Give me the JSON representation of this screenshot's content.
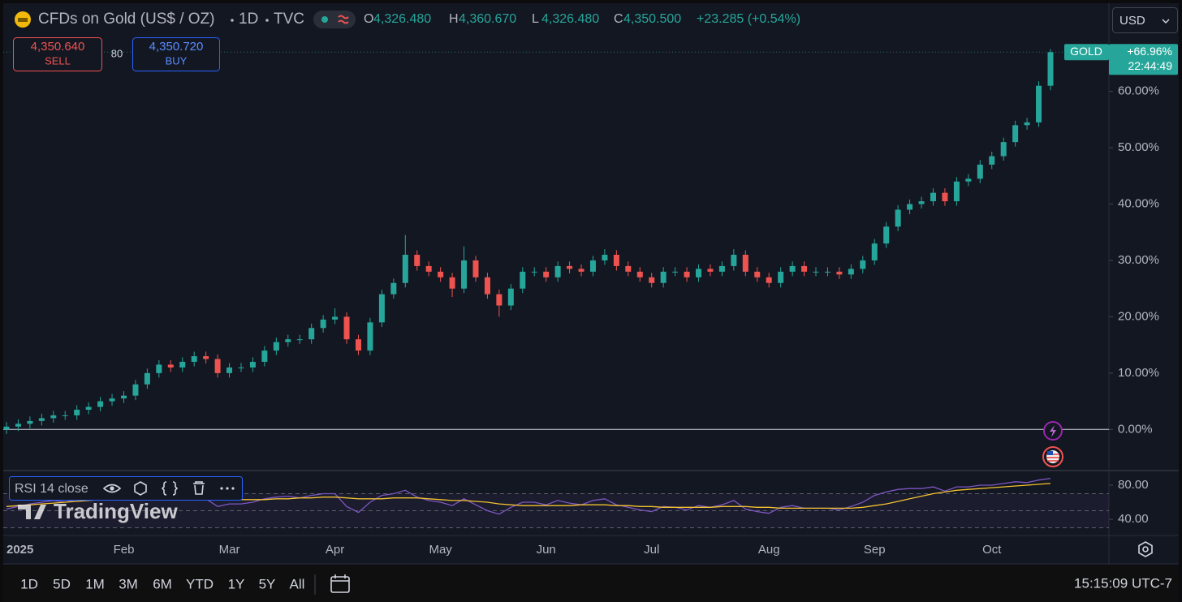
{
  "header": {
    "name": "CFDs on Gold (US$ / OZ)",
    "interval": "1D",
    "source": "TVC",
    "open_label": "O",
    "open": "4,326.480",
    "high_label": "H",
    "high": "4,360.670",
    "low_label": "L",
    "low": "4,326.480",
    "close_label": "C",
    "close": "4,350.500",
    "change": "+23.285 (+0.54%)"
  },
  "trade": {
    "sell_price": "4,350.640",
    "sell": "SELL",
    "spread": "80",
    "buy_price": "4,350.720",
    "buy": "BUY"
  },
  "currency": "USD",
  "watermark": "TradingView",
  "timeframes": [
    "1D",
    "5D",
    "1M",
    "3M",
    "6M",
    "YTD",
    "1Y",
    "5Y",
    "All"
  ],
  "clock": "15:15:09 UTC-7",
  "chart_data": [
    {
      "type": "candlestick",
      "symbol": "GOLD",
      "last_close_label": "+66.96%",
      "countdown": "22:44:49",
      "up_color": "#26a69a",
      "down_color": "#ef5350",
      "categories": [
        "2025",
        null,
        null,
        null,
        null,
        null,
        null,
        null,
        null,
        null,
        "Feb",
        null,
        null,
        null,
        null,
        null,
        null,
        null,
        null,
        "Mar",
        null,
        null,
        null,
        null,
        null,
        null,
        null,
        null,
        "Apr",
        null,
        null,
        null,
        null,
        null,
        null,
        null,
        null,
        "May",
        null,
        null,
        null,
        null,
        null,
        null,
        null,
        null,
        "Jun",
        null,
        null,
        null,
        null,
        null,
        null,
        null,
        null,
        "Jul",
        null,
        null,
        null,
        null,
        null,
        null,
        null,
        null,
        null,
        "Aug",
        null,
        null,
        null,
        null,
        null,
        null,
        null,
        null,
        "Sep",
        null,
        null,
        null,
        null,
        null,
        null,
        null,
        null,
        null,
        "Oct",
        null,
        null,
        null,
        null,
        null
      ],
      "open": [
        0,
        0.5,
        1,
        1.5,
        2,
        2.5,
        2.5,
        3.5,
        4,
        5,
        5.5,
        6,
        8,
        10,
        11.5,
        11,
        12,
        13,
        12.5,
        10,
        11,
        11,
        12,
        14,
        15.5,
        16,
        16,
        18,
        19.5,
        20,
        16,
        14,
        19,
        24,
        26,
        31,
        29,
        28,
        27,
        25,
        30,
        27,
        24,
        22,
        25,
        28,
        28,
        27,
        29,
        28.5,
        28,
        30,
        31,
        29,
        28,
        27,
        26,
        28,
        28,
        27,
        28.5,
        28,
        29,
        31,
        28,
        27,
        26,
        28,
        29,
        28,
        28,
        28,
        27.5,
        28.5,
        30,
        33,
        36,
        39,
        40,
        40.5,
        42,
        40.5,
        44,
        44.5,
        47,
        48.5,
        51,
        54,
        54.5,
        61
      ],
      "high": [
        1.3,
        1.8,
        2.3,
        2.8,
        3.3,
        3.3,
        4.3,
        4.8,
        5.8,
        6.3,
        6.8,
        8.8,
        10.8,
        12.3,
        12.3,
        12.8,
        13.8,
        13.8,
        13.3,
        11.8,
        11.8,
        12.8,
        14.8,
        16.3,
        16.8,
        16.8,
        18.8,
        20.3,
        21.5,
        20.8,
        16.8,
        19.8,
        24.8,
        26.8,
        34.5,
        31.8,
        29.8,
        28.8,
        27.8,
        32.5,
        30.8,
        27.8,
        24.8,
        25.8,
        28.8,
        28.8,
        28.8,
        29.8,
        29.8,
        29.3,
        30.8,
        32,
        31.8,
        29.8,
        28.8,
        27.8,
        28.8,
        28.8,
        28.8,
        29.3,
        29.3,
        29.8,
        32,
        31.8,
        28.8,
        27.8,
        28.8,
        29.8,
        29.8,
        28.8,
        28.8,
        28.8,
        29.3,
        30.8,
        33.8,
        36.8,
        39.8,
        40.8,
        41.3,
        42.8,
        42.8,
        44.8,
        45.3,
        47.8,
        49.3,
        51.8,
        54.8,
        55.3,
        61.8,
        67.5
      ],
      "low": [
        -0.8,
        -0.3,
        0.2,
        0.7,
        1.2,
        1.7,
        1.7,
        2.7,
        3.2,
        4.2,
        4.7,
        5.2,
        7.2,
        9.2,
        10.2,
        10.2,
        11.2,
        11.7,
        9.2,
        9.2,
        10.2,
        10.2,
        11.2,
        13.2,
        14.7,
        15.2,
        15.2,
        17.2,
        18.7,
        15.2,
        13.2,
        13.2,
        18.2,
        23.2,
        25.2,
        28.2,
        27.2,
        26.2,
        23.5,
        24.2,
        26.2,
        23.2,
        20,
        21.2,
        24.2,
        27.2,
        26.2,
        26.2,
        27.7,
        27.2,
        27.2,
        29.2,
        28.2,
        27.2,
        26.2,
        25.2,
        25.2,
        27.2,
        26.2,
        26.2,
        27.2,
        27.2,
        28.2,
        27.2,
        26.2,
        25.2,
        25.2,
        27.2,
        27.2,
        27.2,
        27.2,
        26.7,
        26.7,
        27.7,
        29.2,
        32.2,
        35.2,
        38.2,
        39.2,
        39.7,
        39.7,
        39.7,
        43.2,
        43.7,
        46.2,
        47.7,
        50.2,
        53.2,
        53.7,
        60.2
      ],
      "close": [
        0.5,
        1,
        1.5,
        2,
        2.5,
        2.5,
        3.5,
        4,
        5,
        5.5,
        6,
        8,
        10,
        11.5,
        11,
        12,
        13,
        12.5,
        10,
        11,
        11,
        12,
        14,
        15.5,
        16,
        16,
        18,
        19.5,
        20,
        16,
        14,
        19,
        24,
        26,
        31,
        29,
        28,
        27,
        25,
        30,
        27,
        24,
        22,
        25,
        28,
        28,
        27,
        29,
        28.5,
        28,
        30,
        31,
        29,
        28,
        27,
        26,
        28,
        28,
        27,
        28.5,
        28,
        29,
        31,
        28,
        27,
        26,
        28,
        29,
        28,
        28,
        28,
        27.5,
        28.5,
        30,
        33,
        36,
        39,
        40,
        40.5,
        42,
        40.5,
        44,
        44.5,
        47,
        48.5,
        51,
        54,
        54.5,
        61,
        66.96
      ],
      "ylim": [
        -7.3,
        75.5
      ],
      "yticks": [
        {
          "value": 0,
          "label": "0.00%"
        },
        {
          "value": 10,
          "label": "10.00%"
        },
        {
          "value": 20,
          "label": "20.00%"
        },
        {
          "value": 30,
          "label": "30.00%"
        },
        {
          "value": 40,
          "label": "40.00%"
        },
        {
          "value": 50,
          "label": "50.00%"
        },
        {
          "value": 60,
          "label": "60.00%"
        }
      ]
    },
    {
      "type": "line",
      "title": "RSI 14 close",
      "series": [
        {
          "color": "#7e57c2",
          "values": [
            52,
            55,
            58,
            60,
            62,
            60,
            63,
            64,
            66,
            65,
            66,
            68,
            70,
            71,
            66,
            67,
            68,
            64,
            55,
            58,
            58,
            60,
            64,
            66,
            67,
            65,
            68,
            70,
            70,
            55,
            48,
            60,
            68,
            70,
            74,
            66,
            62,
            60,
            56,
            64,
            57,
            50,
            46,
            54,
            60,
            60,
            57,
            62,
            59,
            57,
            62,
            64,
            57,
            54,
            51,
            49,
            55,
            54,
            51,
            56,
            54,
            57,
            62,
            52,
            49,
            47,
            54,
            56,
            53,
            53,
            53,
            51,
            55,
            60,
            68,
            72,
            75,
            76,
            76,
            78,
            73,
            78,
            78,
            80,
            80,
            82,
            84,
            83,
            86,
            88
          ]
        },
        {
          "color": "#f2c230",
          "values": [
            55,
            56,
            57,
            58,
            59,
            60,
            61,
            62,
            63,
            63,
            64,
            65,
            66,
            67,
            67,
            67,
            67,
            66,
            65,
            64,
            63,
            63,
            63,
            64,
            64,
            65,
            65,
            66,
            66,
            65,
            64,
            64,
            64,
            65,
            65,
            65,
            64,
            63,
            62,
            62,
            61,
            60,
            58,
            57,
            56,
            56,
            56,
            56,
            56,
            57,
            57,
            57,
            56,
            56,
            55,
            55,
            54,
            54,
            54,
            54,
            54,
            55,
            55,
            55,
            54,
            54,
            53,
            53,
            53,
            53,
            53,
            53,
            53,
            54,
            56,
            58,
            61,
            64,
            67,
            70,
            72,
            74,
            75,
            76,
            77,
            78,
            79,
            80,
            81,
            82
          ]
        }
      ],
      "levels": [
        70,
        50,
        30
      ],
      "ylim": [
        21,
        95.2
      ],
      "yticks": [
        {
          "value": 80,
          "label": "80.00"
        },
        {
          "value": 40,
          "label": "40.00"
        }
      ]
    }
  ]
}
